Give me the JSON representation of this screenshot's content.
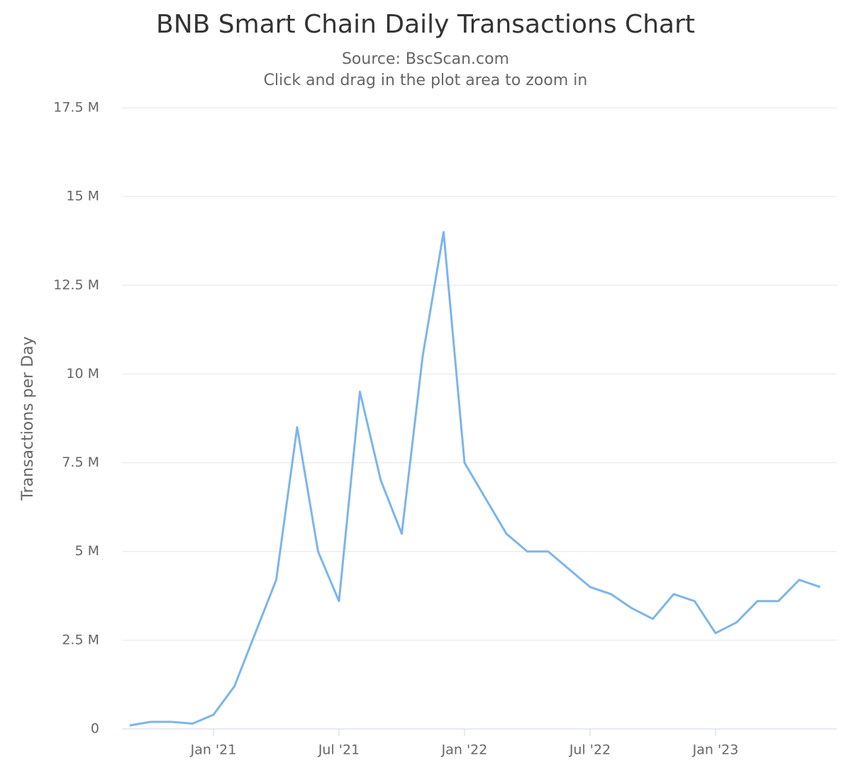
{
  "chart_data": {
    "type": "line",
    "title": "BNB Smart Chain Daily Transactions Chart",
    "subtitle": "Source: BscScan.com",
    "subtitle2": "Click and drag in the plot area to zoom in",
    "y_label": "Transactions per Day",
    "x": [
      "2020-09",
      "2020-10",
      "2020-11",
      "2020-12",
      "2021-01",
      "2021-02",
      "2021-03",
      "2021-04",
      "2021-05",
      "2021-06",
      "2021-07",
      "2021-08",
      "2021-09",
      "2021-10",
      "2021-11",
      "2021-12",
      "2022-01",
      "2022-02",
      "2022-03",
      "2022-04",
      "2022-05",
      "2022-06",
      "2022-07",
      "2022-08",
      "2022-09",
      "2022-10",
      "2022-11",
      "2022-12",
      "2023-01",
      "2023-02",
      "2023-03",
      "2023-04",
      "2023-05",
      "2023-06"
    ],
    "series": [
      {
        "name": "Transactions per Day",
        "color": "#7cb5ec",
        "values": [
          100000,
          200000,
          200000,
          150000,
          400000,
          1200000,
          2700000,
          4200000,
          8500000,
          5000000,
          3600000,
          9500000,
          7000000,
          5500000,
          10500000,
          14000000,
          7500000,
          6500000,
          5500000,
          5000000,
          5000000,
          4500000,
          4000000,
          3800000,
          3400000,
          3100000,
          3800000,
          3600000,
          2700000,
          3000000,
          3600000,
          3600000,
          4200000,
          4000000
        ]
      }
    ],
    "xlim": [
      "2020-09",
      "2023-07"
    ],
    "xticks": [
      {
        "value": "2021-01",
        "label": "Jan '21"
      },
      {
        "value": "2021-07",
        "label": "Jul '21"
      },
      {
        "value": "2022-01",
        "label": "Jan '22"
      },
      {
        "value": "2022-07",
        "label": "Jul '22"
      },
      {
        "value": "2023-01",
        "label": "Jan '23"
      }
    ],
    "ylim": [
      0,
      17500000
    ],
    "yticks": [
      0,
      {
        "value": 2500000,
        "label": "2.5 M"
      },
      {
        "value": 5000000,
        "label": "5 M"
      },
      {
        "value": 7500000,
        "label": "7.5 M"
      },
      {
        "value": 10000000,
        "label": "10 M"
      },
      {
        "value": 12500000,
        "label": "12.5 M"
      },
      {
        "value": 15000000,
        "label": "15 M"
      },
      {
        "value": 17500000,
        "label": "17.5 M"
      }
    ],
    "grid": true
  }
}
